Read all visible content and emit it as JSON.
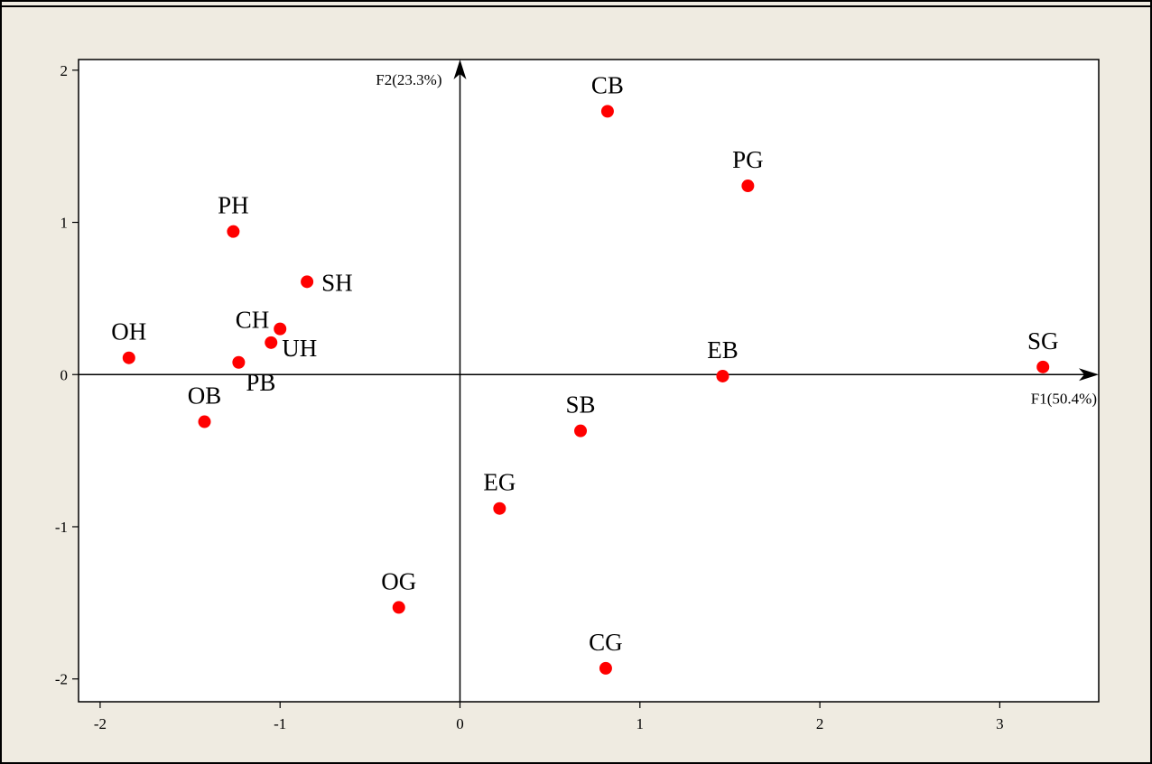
{
  "chart_data": {
    "type": "scatter",
    "title": "",
    "xlabel": "F1(50.4%)",
    "ylabel": "F2(23.3%)",
    "xlim": [
      -2.12,
      3.55
    ],
    "ylim": [
      -2.15,
      2.07
    ],
    "x_ticks": [
      -2,
      -1,
      0,
      1,
      2,
      3
    ],
    "y_ticks": [
      2,
      1,
      0,
      -1,
      -2
    ],
    "x_tick_labels": [
      "-2",
      "-1",
      "0",
      "1",
      "2",
      "3"
    ],
    "y_tick_labels": [
      "2",
      "1",
      "0",
      "-1",
      "-2"
    ],
    "grid": false,
    "marker_color": "#ff0000",
    "points": [
      {
        "label": "CB",
        "x": 0.82,
        "y": 1.73
      },
      {
        "label": "PG",
        "x": 1.6,
        "y": 1.24
      },
      {
        "label": "PH",
        "x": -1.26,
        "y": 0.94
      },
      {
        "label": "SH",
        "x": -0.85,
        "y": 0.61
      },
      {
        "label": "CH",
        "x": -1.0,
        "y": 0.3
      },
      {
        "label": "UH",
        "x": -1.05,
        "y": 0.21
      },
      {
        "label": "OH",
        "x": -1.84,
        "y": 0.11
      },
      {
        "label": "PB",
        "x": -1.23,
        "y": 0.08
      },
      {
        "label": "SG",
        "x": 3.24,
        "y": 0.05
      },
      {
        "label": "EB",
        "x": 1.46,
        "y": -0.01
      },
      {
        "label": "OB",
        "x": -1.42,
        "y": -0.31
      },
      {
        "label": "SB",
        "x": 0.67,
        "y": -0.37
      },
      {
        "label": "EG",
        "x": 0.22,
        "y": -0.88
      },
      {
        "label": "OG",
        "x": -0.34,
        "y": -1.53
      },
      {
        "label": "CG",
        "x": 0.81,
        "y": -1.93
      }
    ]
  }
}
